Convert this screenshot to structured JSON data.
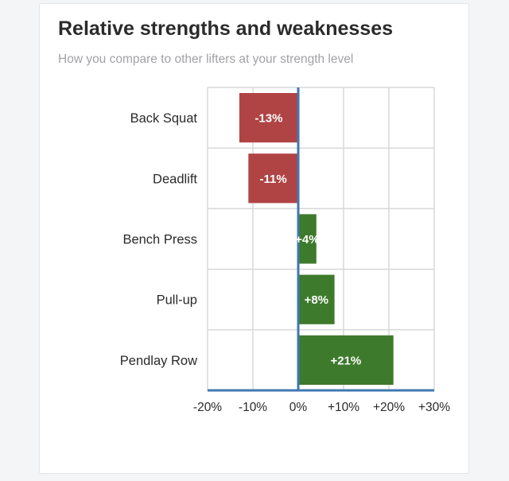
{
  "card": {
    "title": "Relative strengths and weaknesses",
    "subtitle": "How you compare to other lifters at your strength level"
  },
  "chart_data": {
    "type": "bar",
    "orientation": "horizontal",
    "title": "Relative strengths and weaknesses",
    "subtitle": "How you compare to other lifters at your strength level",
    "categories": [
      "Back Squat",
      "Deadlift",
      "Bench Press",
      "Pull-up",
      "Pendlay Row"
    ],
    "values": [
      -13,
      -11,
      4,
      8,
      21
    ],
    "value_labels": [
      "-13%",
      "-11%",
      "+4%",
      "+8%",
      "+21%"
    ],
    "xlim": [
      -20,
      30
    ],
    "xticks": [
      -20,
      -10,
      0,
      10,
      20,
      30
    ],
    "xtick_labels": [
      "-20%",
      "-10%",
      "0%",
      "+10%",
      "+20%",
      "+30%"
    ],
    "xlabel": "",
    "ylabel": "",
    "grid": true,
    "colors": {
      "negative": "#b04444",
      "positive": "#3e7a2c",
      "axis": "#3f78b1",
      "grid": "#d8d8d8"
    }
  }
}
